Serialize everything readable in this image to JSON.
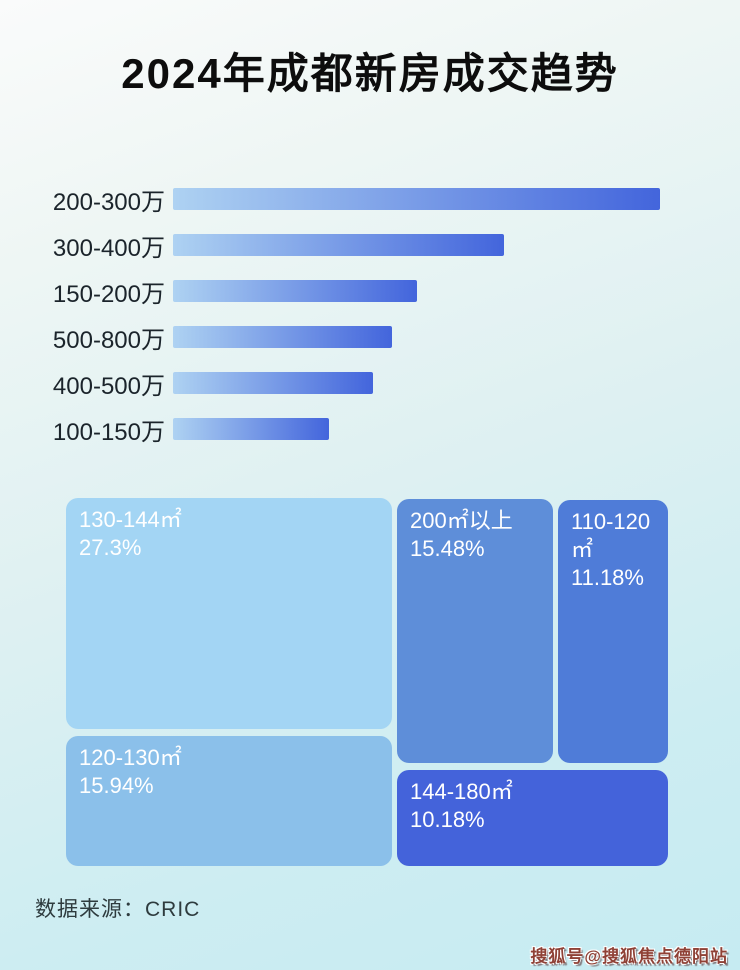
{
  "page": {
    "title": "2024年成都新房成交趋势",
    "source_label": "数据来源：CRIC",
    "watermark": "搜狐号@搜狐焦点德阳站"
  },
  "colors": {
    "background_top": "#fafbfb",
    "background_bottom": "#c6ebf2",
    "bar_gradient_start": "#aed2f2",
    "bar_gradient_end": "#4365dc",
    "title_color": "#0d0d0d",
    "bar_label_color": "#1b242b",
    "tile_text_color": "#ffffff",
    "tile_colors": [
      "#a3d5f4",
      "#8bc0ea",
      "#5e8ed9",
      "#4f7cd8",
      "#4463da"
    ]
  },
  "chart_data": [
    {
      "type": "bar",
      "orientation": "horizontal",
      "title": "2024年成都新房成交趋势",
      "categories": [
        "200-300万",
        "300-400万",
        "150-200万",
        "500-800万",
        "400-500万",
        "100-150万"
      ],
      "values_relative_pct_of_max": [
        100,
        68,
        50,
        45,
        41,
        32
      ],
      "value_labels_shown": false,
      "note": "No numeric axis or data labels are shown; values are bar lengths relative to the longest bar (200-300万 = 100).",
      "xlabel": "",
      "ylabel": "",
      "grid": false,
      "legend": false
    },
    {
      "type": "treemap",
      "categories": [
        "130-144㎡",
        "120-130㎡",
        "200㎡以上",
        "110-120㎡",
        "144-180㎡"
      ],
      "values": [
        27.3,
        15.94,
        15.48,
        11.18,
        10.18
      ],
      "value_labels": [
        "27.3%",
        "15.94%",
        "15.48%",
        "11.18%",
        "10.18%"
      ],
      "unit": "%",
      "title": "",
      "legend": false
    }
  ]
}
